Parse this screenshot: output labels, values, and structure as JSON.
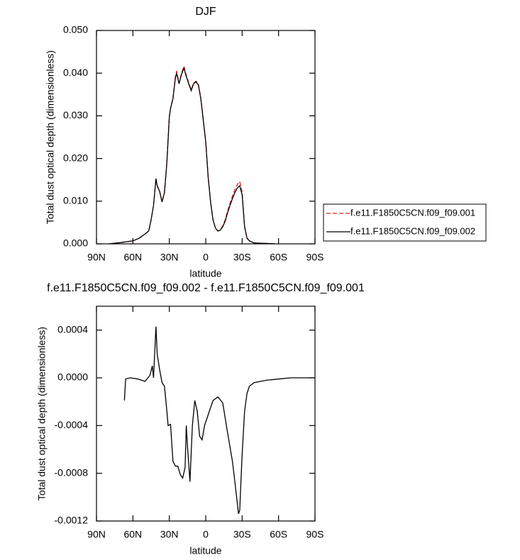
{
  "chart_data": [
    {
      "type": "line",
      "title": "DJF",
      "x_label": "latitude",
      "y_label": "Total dust optical depth (dimensionless)",
      "x": [
        80,
        70,
        60,
        55,
        50,
        47,
        45,
        43,
        41,
        40,
        38,
        36,
        34,
        32,
        30,
        29,
        27,
        25,
        24,
        22,
        20,
        18,
        16,
        14,
        12,
        10,
        8,
        6,
        4,
        2,
        0,
        -2,
        -4,
        -6,
        -8,
        -10,
        -12,
        -14,
        -16,
        -18,
        -20,
        -22,
        -24,
        -26,
        -28,
        -30,
        -32,
        -34,
        -36,
        -40,
        -50,
        -57
      ],
      "series": [
        {
          "name": "f.e11.F1850C5CN.f09_f09.001",
          "color": "#e02020",
          "line_style": "dashed",
          "values": [
            0,
            0.0003,
            0.0007,
            0.0013,
            0.0023,
            0.003,
            0.0056,
            0.009,
            0.0152,
            0.0137,
            0.0124,
            0.0099,
            0.0121,
            0.0192,
            0.0298,
            0.0318,
            0.0342,
            0.0392,
            0.0405,
            0.0377,
            0.0399,
            0.0416,
            0.0395,
            0.0377,
            0.0361,
            0.0377,
            0.0381,
            0.0373,
            0.0341,
            0.0291,
            0.0241,
            0.0158,
            0.0099,
            0.0057,
            0.0037,
            0.003,
            0.0033,
            0.0042,
            0.0056,
            0.0077,
            0.0095,
            0.0112,
            0.0127,
            0.0139,
            0.0146,
            0.0121,
            0.0042,
            0.0014,
            0.0007,
            0.0002,
            0.0001,
            0
          ]
        },
        {
          "name": "f.e11.F1850C5CN.f09_f09.002",
          "color": "#000000",
          "line_style": "solid",
          "values": [
            0,
            0.0003,
            0.0007,
            0.0013,
            0.0023,
            0.003,
            0.0056,
            0.009,
            0.0153,
            0.0136,
            0.0123,
            0.0098,
            0.012,
            0.019,
            0.0297,
            0.0317,
            0.034,
            0.0389,
            0.04,
            0.0375,
            0.0397,
            0.0412,
            0.0392,
            0.0375,
            0.0359,
            0.0375,
            0.038,
            0.0372,
            0.0339,
            0.0289,
            0.0239,
            0.0156,
            0.0098,
            0.0056,
            0.0037,
            0.003,
            0.0032,
            0.004,
            0.0053,
            0.0073,
            0.009,
            0.0106,
            0.012,
            0.0131,
            0.0136,
            0.0115,
            0.004,
            0.0013,
            0.0007,
            0.0002,
            0.0001,
            0
          ]
        }
      ],
      "xlim": [
        90,
        -90
      ],
      "xticks": [
        {
          "value": 90,
          "label": "90N"
        },
        {
          "value": 60,
          "label": "60N"
        },
        {
          "value": 30,
          "label": "30N"
        },
        0,
        {
          "value": -30,
          "label": "30S"
        },
        {
          "value": -60,
          "label": "60S"
        },
        {
          "value": -90,
          "label": "90S"
        }
      ],
      "ylim": [
        0,
        0.05
      ],
      "yticks": [
        {
          "value": 0,
          "label": "0.000"
        },
        {
          "value": 0.01,
          "label": "0.010"
        },
        {
          "value": 0.02,
          "label": "0.020"
        },
        {
          "value": 0.03,
          "label": "0.030"
        },
        {
          "value": 0.04,
          "label": "0.040"
        },
        {
          "value": 0.05,
          "label": "0.050"
        }
      ],
      "legend_position": "right"
    },
    {
      "type": "line",
      "title": "f.e11.F1850C5CN.f09_f09.002 - f.e11.F1850C5CN.f09_f09.001",
      "x_label": "latitude",
      "y_label": "Total dust optical depth (dimensionless)",
      "x": [
        67,
        66,
        62,
        56,
        50,
        46,
        44,
        43,
        41,
        40,
        38,
        36,
        34,
        32,
        31,
        29,
        27,
        25,
        23,
        21,
        19,
        17,
        16,
        15,
        13,
        11,
        9,
        7,
        5,
        3,
        1,
        -1,
        -3,
        -6,
        -10,
        -14,
        -18,
        -22,
        -24,
        -26,
        -27,
        -28,
        -29,
        -30,
        -32,
        -34,
        -36,
        -40,
        -50,
        -60,
        -70,
        -80,
        -90
      ],
      "series": [
        {
          "color": "#000000",
          "line_style": "solid",
          "values": [
            -0.00019,
            -1e-05,
            0,
            -1e-05,
            -3e-05,
            2e-05,
            0.0001,
            0,
            0.00043,
            0.0002,
            7e-05,
            -4e-05,
            -7e-05,
            -0.00028,
            -0.0004,
            -0.00039,
            -0.0007,
            -0.00074,
            -0.00074,
            -0.00081,
            -0.00084,
            -0.00075,
            -0.0004,
            -0.00058,
            -0.00087,
            -0.0004,
            -0.00019,
            -0.00028,
            -0.00049,
            -0.00052,
            -0.0004,
            -0.00034,
            -0.00028,
            -0.00019,
            -0.00016,
            -0.00021,
            -0.00046,
            -0.0007,
            -0.00087,
            -0.00105,
            -0.00114,
            -0.00111,
            -0.00087,
            -0.00064,
            -0.00028,
            -0.00013,
            -7e-05,
            -4e-05,
            -2e-05,
            -1e-05,
            0,
            0,
            0
          ]
        }
      ],
      "xlim": [
        90,
        -90
      ],
      "xticks": [
        {
          "value": 90,
          "label": "90N"
        },
        {
          "value": 60,
          "label": "60N"
        },
        {
          "value": 30,
          "label": "30N"
        },
        0,
        {
          "value": -30,
          "label": "30S"
        },
        {
          "value": -60,
          "label": "60S"
        },
        {
          "value": -90,
          "label": "90S"
        }
      ],
      "ylim": [
        -0.0012,
        0.0006
      ],
      "yticks": [
        {
          "value": -0.0012,
          "label": "-0.0012"
        },
        {
          "value": -0.0008,
          "label": "-0.0008"
        },
        {
          "value": -0.0004,
          "label": "-0.0004"
        },
        {
          "value": 0,
          "label": "0.0000"
        },
        {
          "value": 0.0004,
          "label": "0.0004"
        }
      ]
    }
  ]
}
